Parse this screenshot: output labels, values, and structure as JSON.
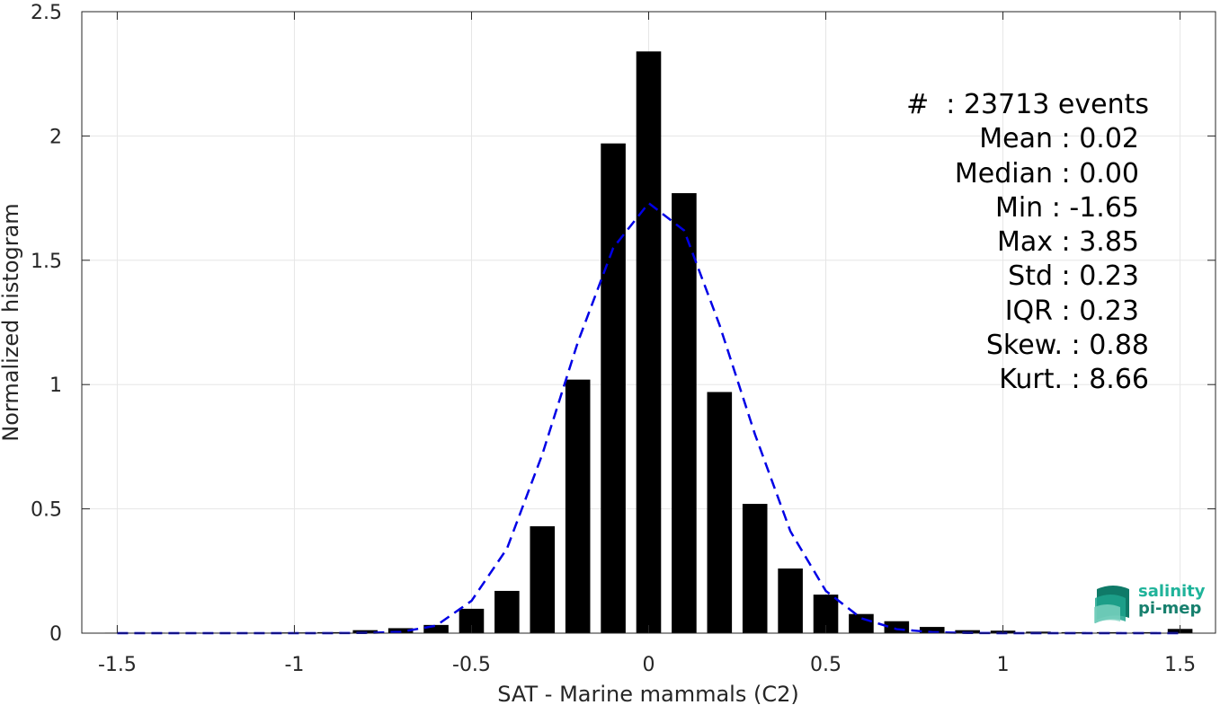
{
  "chart_data": {
    "type": "bar",
    "xlabel": "SAT - Marine mammals (C2)",
    "ylabel": "Normalized histogram",
    "xlim": [
      -1.6,
      1.6
    ],
    "ylim": [
      0,
      2.5
    ],
    "xticks": [
      -1.5,
      -1,
      -0.5,
      0,
      0.5,
      1,
      1.5
    ],
    "xtick_labels": [
      "-1.5",
      "-1",
      "-0.5",
      "0",
      "0.5",
      "1",
      "1.5"
    ],
    "yticks": [
      0,
      0.5,
      1,
      1.5,
      2,
      2.5
    ],
    "ytick_labels": [
      "0",
      "0.5",
      "1",
      "1.5",
      "2",
      "2.5"
    ],
    "grid": true,
    "bar_color": "#000000",
    "bin_width": 0.1,
    "bins": {
      "x": [
        -1.5,
        -1.4,
        -1.3,
        -1.2,
        -1.1,
        -1.0,
        -0.9,
        -0.8,
        -0.7,
        -0.6,
        -0.5,
        -0.4,
        -0.3,
        -0.2,
        -0.1,
        0.0,
        0.1,
        0.2,
        0.3,
        0.4,
        0.5,
        0.6,
        0.7,
        0.8,
        0.9,
        1.0,
        1.1,
        1.2,
        1.3,
        1.4,
        1.5
      ],
      "values": [
        0.002,
        0.002,
        0.002,
        0.002,
        0.002,
        0.003,
        0.004,
        0.012,
        0.02,
        0.033,
        0.098,
        0.17,
        0.43,
        1.02,
        1.97,
        2.34,
        1.77,
        0.97,
        0.52,
        0.26,
        0.155,
        0.077,
        0.048,
        0.025,
        0.012,
        0.01,
        0.006,
        0.004,
        0.004,
        0.004,
        0.017
      ]
    },
    "fit_line": {
      "style": "dashed",
      "color": "#0000e6",
      "x": [
        -1.5,
        -1.4,
        -1.3,
        -1.2,
        -1.1,
        -1.0,
        -0.9,
        -0.8,
        -0.7,
        -0.6,
        -0.5,
        -0.4,
        -0.3,
        -0.2,
        -0.1,
        0.0,
        0.1,
        0.2,
        0.3,
        0.4,
        0.5,
        0.6,
        0.7,
        0.8,
        0.9,
        1.0,
        1.1,
        1.2,
        1.3,
        1.4,
        1.5
      ],
      "y": [
        0,
        0,
        0,
        0,
        0,
        0,
        0,
        0.001,
        0.005,
        0.03,
        0.13,
        0.34,
        0.72,
        1.17,
        1.55,
        1.73,
        1.62,
        1.24,
        0.8,
        0.41,
        0.17,
        0.06,
        0.016,
        0.004,
        0.001,
        0,
        0,
        0,
        0,
        0,
        0
      ]
    }
  },
  "stats": {
    "events": "#  : 23713 events",
    "mean": "Mean : 0.02",
    "median": "Median : 0.00",
    "min": "Min : -1.65",
    "max": "Max : 3.85",
    "std": "Std : 0.23",
    "iqr": "IQR : 0.23",
    "skew": "Skew. : 0.88",
    "kurt": "Kurt. : 8.66"
  },
  "logo": {
    "line1": "salinity",
    "line2": "pi-mep",
    "colors": [
      "#1fb39a",
      "#17806e"
    ]
  }
}
